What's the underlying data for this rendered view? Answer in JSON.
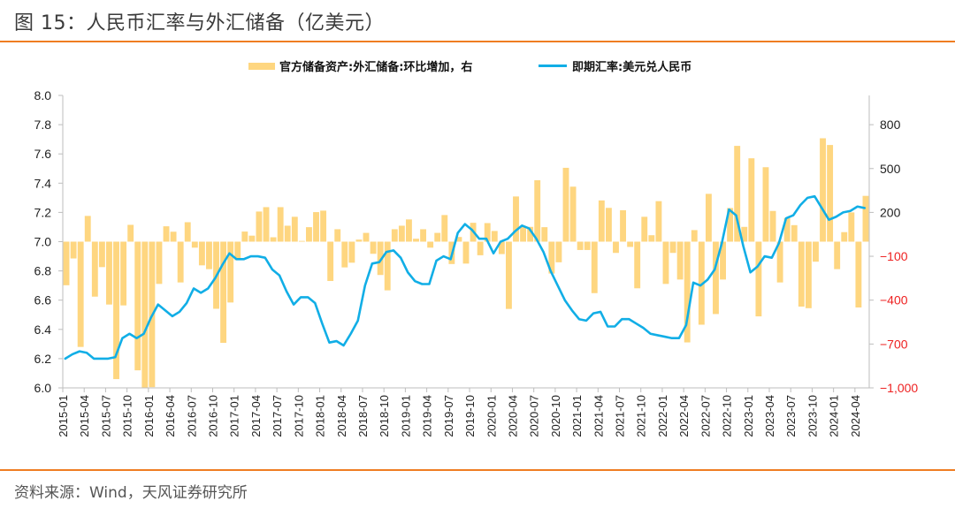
{
  "header": {
    "title": "图 15：人民币汇率与外汇储备（亿美元）"
  },
  "footer": {
    "source": "资料来源：Wind，天风证券研究所"
  },
  "legend": {
    "bar_label": "官方储备资产:外汇储备:环比增加，右",
    "line_label": "即期汇率:美元兑人民币"
  },
  "colors": {
    "bar": "#fed680",
    "line": "#11aee6",
    "accent_rule": "#ef7d22",
    "negative_tick": "#ee2222"
  },
  "chart_data": {
    "type": "bar+line",
    "title": "人民币汇率与外汇储备（亿美元）",
    "xlabel": "",
    "ylabel_left": "即期汇率:美元兑人民币",
    "ylabel_right": "官方储备资产:外汇储备:环比增加（亿美元）",
    "legend_position": "top",
    "grid": false,
    "x_start": "2015-01",
    "x_end": "2024-05",
    "x_tick_labels": [
      "2015-01",
      "2015-04",
      "2015-07",
      "2015-10",
      "2016-01",
      "2016-04",
      "2016-07",
      "2016-10",
      "2017-01",
      "2017-04",
      "2017-07",
      "2017-10",
      "2018-01",
      "2018-04",
      "2018-07",
      "2018-10",
      "2019-01",
      "2019-04",
      "2019-07",
      "2019-10",
      "2020-01",
      "2020-04",
      "2020-07",
      "2020-10",
      "2021-01",
      "2021-04",
      "2021-07",
      "2021-10",
      "2022-01",
      "2022-04",
      "2022-07",
      "2022-10",
      "2023-01",
      "2023-04",
      "2023-07",
      "2023-10",
      "2024-01",
      "2024-04"
    ],
    "y_left": {
      "min": 6.0,
      "max": 8.0,
      "ticks": [
        "6.0",
        "6.2",
        "6.4",
        "6.6",
        "6.8",
        "7.0",
        "7.2",
        "7.4",
        "7.6",
        "7.8",
        "8.0"
      ]
    },
    "y_right": {
      "min": -1000,
      "max": 1000,
      "ticks": [
        {
          "value": 800,
          "label": "800"
        },
        {
          "value": 500,
          "label": "500"
        },
        {
          "value": 200,
          "label": "200"
        },
        {
          "value": -100,
          "label": "−100"
        },
        {
          "value": -400,
          "label": "−400"
        },
        {
          "value": -700,
          "label": "−700"
        },
        {
          "value": -1000,
          "label": "−1,000"
        }
      ]
    },
    "series": [
      {
        "name": "官方储备资产:外汇储备:环比增加，右",
        "type": "bar",
        "axis": "right",
        "values": [
          -298,
          -115,
          -720,
          176,
          -376,
          -174,
          -430,
          -940,
          -436,
          115,
          -880,
          -1079,
          -995,
          -289,
          105,
          68,
          -279,
          133,
          -41,
          -162,
          -188,
          -459,
          -692,
          -416,
          -127,
          69,
          41,
          206,
          236,
          30,
          236,
          109,
          170,
          5,
          99,
          202,
          212,
          -269,
          85,
          -176,
          -144,
          14,
          60,
          -83,
          -228,
          -333,
          85,
          109,
          152,
          20,
          85,
          -41,
          60,
          182,
          -153,
          32,
          -150,
          129,
          -93,
          127,
          73,
          -85,
          -460,
          309,
          101,
          101,
          420,
          99,
          -218,
          -141,
          505,
          376,
          -57,
          -57,
          -352,
          282,
          231,
          -77,
          215,
          -36,
          -319,
          170,
          44,
          277,
          -289,
          -77,
          -259,
          -689,
          79,
          -568,
          327,
          -495,
          -259,
          230,
          655,
          101,
          570,
          -511,
          509,
          210,
          -279,
          162,
          113,
          -444,
          -455,
          -137,
          707,
          661,
          -188,
          65,
          200,
          -450,
          313
        ]
      },
      {
        "name": "即期汇率:美元兑人民币",
        "type": "line",
        "axis": "left",
        "values": [
          6.2,
          6.23,
          6.25,
          6.24,
          6.2,
          6.2,
          6.2,
          6.21,
          6.34,
          6.37,
          6.34,
          6.37,
          6.48,
          6.57,
          6.53,
          6.49,
          6.52,
          6.58,
          6.68,
          6.65,
          6.68,
          6.75,
          6.84,
          6.92,
          6.88,
          6.88,
          6.9,
          6.9,
          6.89,
          6.81,
          6.77,
          6.66,
          6.57,
          6.62,
          6.62,
          6.58,
          6.44,
          6.31,
          6.32,
          6.29,
          6.37,
          6.46,
          6.7,
          6.85,
          6.86,
          6.93,
          6.94,
          6.89,
          6.79,
          6.73,
          6.71,
          6.71,
          6.87,
          6.9,
          6.88,
          7.06,
          7.12,
          7.08,
          7.02,
          7.02,
          6.92,
          7.0,
          7.02,
          7.07,
          7.11,
          7.09,
          7.02,
          6.93,
          6.8,
          6.7,
          6.6,
          6.53,
          6.47,
          6.46,
          6.51,
          6.52,
          6.42,
          6.42,
          6.47,
          6.47,
          6.44,
          6.41,
          6.37,
          6.36,
          6.35,
          6.34,
          6.34,
          6.43,
          6.72,
          6.7,
          6.74,
          6.81,
          6.99,
          7.22,
          7.18,
          6.97,
          6.79,
          6.83,
          6.9,
          6.89,
          6.99,
          7.16,
          7.18,
          7.25,
          7.3,
          7.31,
          7.23,
          7.15,
          7.17,
          7.2,
          7.21,
          7.24,
          7.23
        ]
      }
    ]
  }
}
